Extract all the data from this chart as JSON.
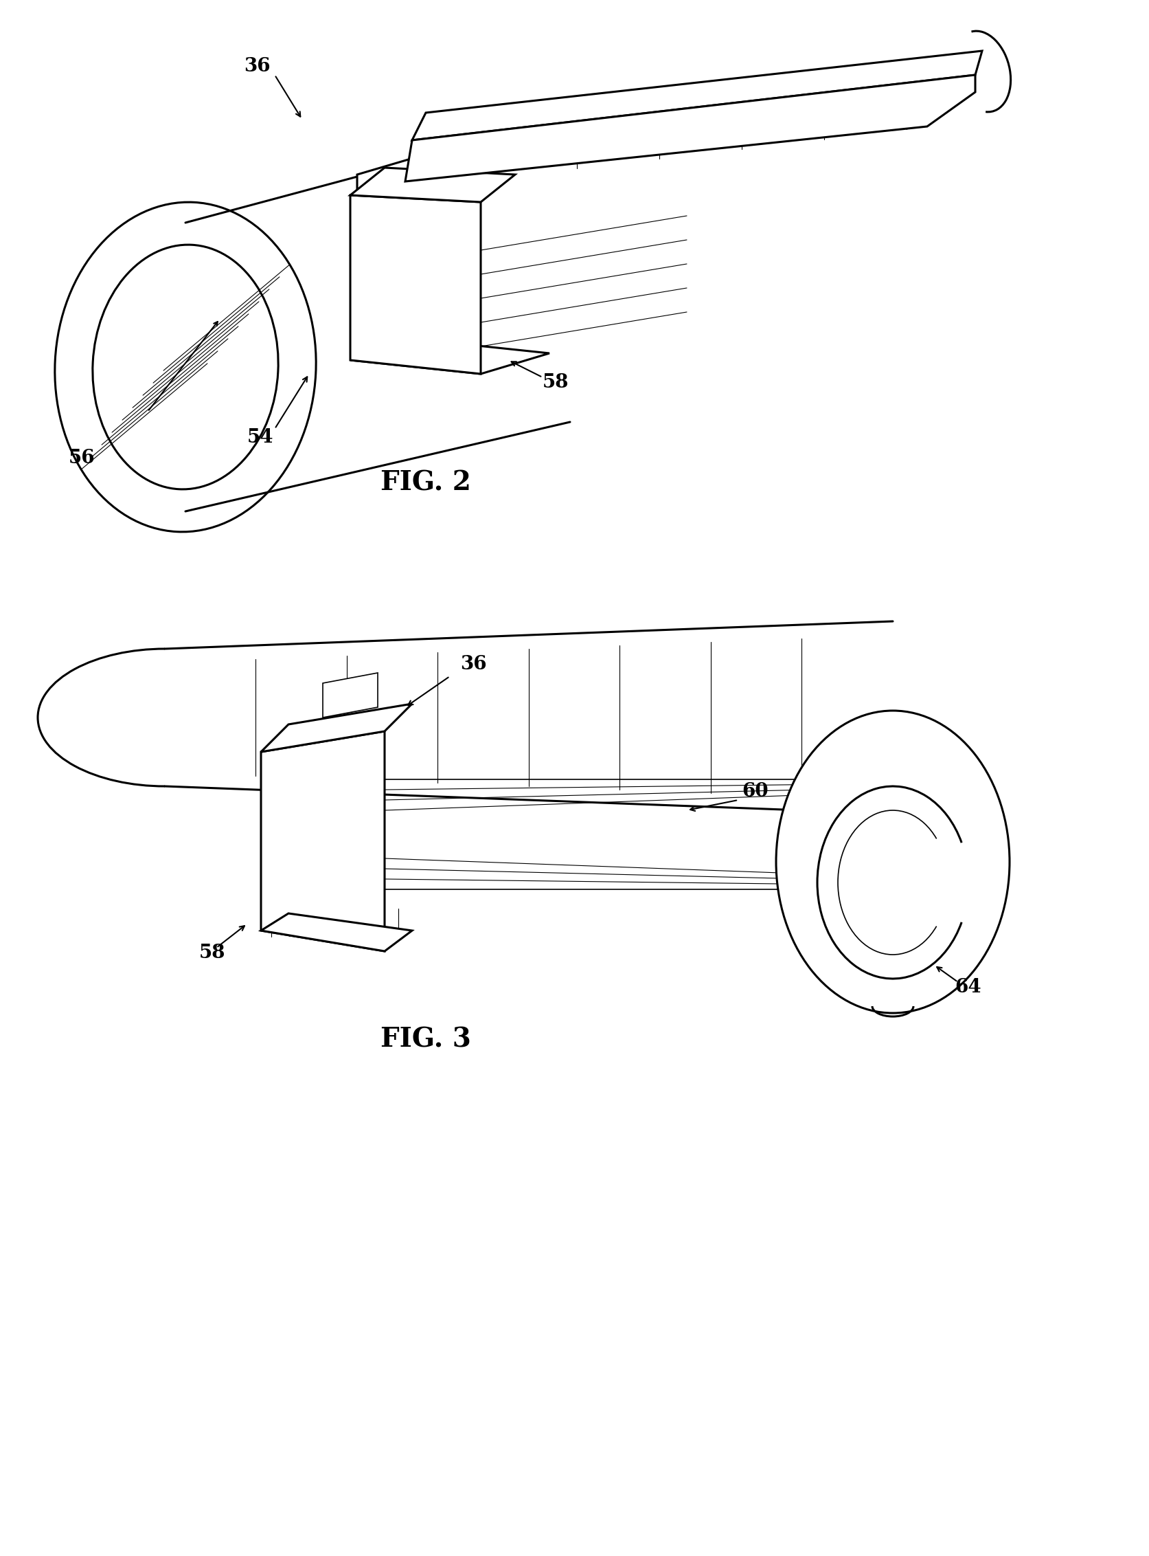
{
  "background_color": "#ffffff",
  "line_color": "#000000",
  "fig_width": 16.74,
  "fig_height": 22.64,
  "fig2_label": "FIG. 2",
  "fig3_label": "FIG. 3",
  "label_36_fig2": "36",
  "label_54": "54",
  "label_56": "56",
  "label_58_fig2": "58",
  "label_36_fig3": "36",
  "label_58_fig3": "58",
  "label_60": "60",
  "label_64": "64",
  "lw_main": 2.2,
  "lw_detail": 1.2,
  "lw_thin": 0.8,
  "label_fontsize": 20,
  "fig_label_fontsize": 28
}
